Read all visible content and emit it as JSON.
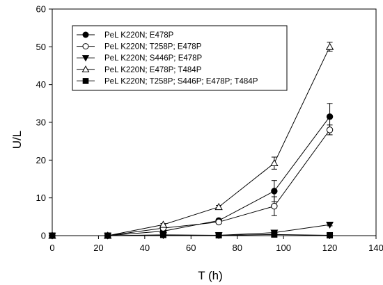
{
  "chart_data": {
    "type": "line",
    "xlabel": "T (h)",
    "ylabel": "U/L",
    "xlim": [
      0,
      140
    ],
    "ylim": [
      0,
      60
    ],
    "xticks": [
      "0",
      "20",
      "40",
      "60",
      "80",
      "100",
      "120",
      "140"
    ],
    "yticks": [
      "0",
      "10",
      "20",
      "30",
      "40",
      "50",
      "60"
    ],
    "grid": false,
    "legend_position": "top-left",
    "line_color": "#000000",
    "series": [
      {
        "name": "PeL K220N; E478P",
        "marker": "filled-circle",
        "x": [
          0,
          24,
          48,
          72,
          96,
          120
        ],
        "y": [
          0,
          0,
          1.2,
          4.0,
          11.8,
          31.5
        ],
        "err": [
          0,
          0,
          0.3,
          0.4,
          2.8,
          3.5
        ]
      },
      {
        "name": "PeL K220N; T258P; E478P",
        "marker": "open-circle",
        "x": [
          0,
          24,
          48,
          72,
          96,
          120
        ],
        "y": [
          0,
          0,
          2.0,
          3.6,
          7.8,
          28.0
        ],
        "err": [
          0,
          0,
          0.3,
          0.4,
          2.5,
          1.3
        ]
      },
      {
        "name": "PeL K220N; S446P; E478P",
        "marker": "filled-triangle-down",
        "x": [
          0,
          24,
          48,
          72,
          96,
          120
        ],
        "y": [
          0,
          0,
          0.1,
          0.1,
          0.8,
          2.9
        ],
        "err": [
          0,
          0,
          0,
          0,
          0.2,
          0.3
        ]
      },
      {
        "name": "PeL K220N; E478P; T484P",
        "marker": "open-triangle-up",
        "x": [
          0,
          24,
          48,
          72,
          96,
          120
        ],
        "y": [
          0,
          0,
          2.9,
          7.6,
          19.2,
          50.0
        ],
        "err": [
          0,
          0,
          0.3,
          0.4,
          1.6,
          1.2
        ]
      },
      {
        "name": "PeL K220N; T258P; S446P; E478P; T484P",
        "marker": "filled-square",
        "x": [
          0,
          24,
          48,
          72,
          96,
          120
        ],
        "y": [
          0,
          0,
          0.2,
          0.1,
          0.3,
          0.1
        ],
        "err": [
          0,
          0,
          0,
          0,
          0,
          0
        ]
      }
    ]
  }
}
